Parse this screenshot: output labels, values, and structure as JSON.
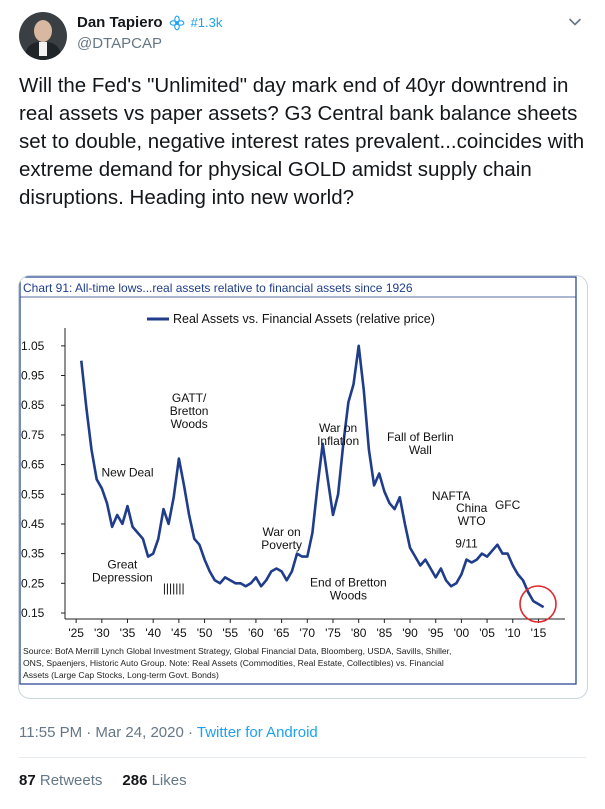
{
  "author": {
    "name": "Dan Tapiero",
    "handle": "@DTAPCAP",
    "hashtag": "#1.3k"
  },
  "tweet": {
    "text": "Will the Fed's \"Unlimited\" day mark end of 40yr downtrend in real assets vs paper assets? G3 Central bank balance sheets set to double, negative interest rates prevalent...coincides with extreme demand for physical GOLD amidst supply chain disruptions. Heading into new world?"
  },
  "chart_data": {
    "type": "line",
    "title": "Chart 91: All-time lows...real assets relative to financial assets since 1926",
    "legend": "Real Assets vs. Financial Assets (relative price)",
    "series": [
      {
        "name": "Real Assets vs. Financial Assets (relative price)",
        "x": [
          1926,
          1927,
          1928,
          1929,
          1930,
          1931,
          1932,
          1933,
          1934,
          1935,
          1936,
          1937,
          1938,
          1939,
          1940,
          1941,
          1942,
          1943,
          1944,
          1945,
          1946,
          1947,
          1948,
          1949,
          1950,
          1951,
          1952,
          1953,
          1954,
          1955,
          1956,
          1957,
          1958,
          1959,
          1960,
          1961,
          1962,
          1963,
          1964,
          1965,
          1966,
          1967,
          1968,
          1969,
          1970,
          1971,
          1972,
          1973,
          1974,
          1975,
          1976,
          1977,
          1978,
          1979,
          1980,
          1981,
          1982,
          1983,
          1984,
          1985,
          1986,
          1987,
          1988,
          1989,
          1990,
          1991,
          1992,
          1993,
          1994,
          1995,
          1996,
          1997,
          1998,
          1999,
          2000,
          2001,
          2002,
          2003,
          2004,
          2005,
          2006,
          2007,
          2008,
          2009,
          2010,
          2011,
          2012,
          2013,
          2014,
          2015,
          2016
        ],
        "values": [
          1.0,
          0.84,
          0.7,
          0.6,
          0.57,
          0.52,
          0.44,
          0.48,
          0.45,
          0.51,
          0.44,
          0.42,
          0.4,
          0.34,
          0.35,
          0.4,
          0.5,
          0.45,
          0.54,
          0.67,
          0.58,
          0.48,
          0.4,
          0.38,
          0.33,
          0.29,
          0.26,
          0.25,
          0.27,
          0.26,
          0.25,
          0.25,
          0.24,
          0.25,
          0.27,
          0.24,
          0.26,
          0.29,
          0.3,
          0.29,
          0.26,
          0.29,
          0.35,
          0.34,
          0.34,
          0.42,
          0.58,
          0.72,
          0.6,
          0.48,
          0.55,
          0.72,
          0.86,
          0.92,
          1.05,
          0.9,
          0.7,
          0.58,
          0.62,
          0.56,
          0.52,
          0.5,
          0.54,
          0.45,
          0.37,
          0.34,
          0.31,
          0.33,
          0.3,
          0.27,
          0.3,
          0.26,
          0.24,
          0.25,
          0.28,
          0.33,
          0.32,
          0.33,
          0.35,
          0.34,
          0.36,
          0.38,
          0.35,
          0.35,
          0.31,
          0.28,
          0.26,
          0.22,
          0.19,
          0.18,
          0.17
        ]
      }
    ],
    "yticks": [
      1.05,
      0.95,
      0.85,
      0.75,
      0.65,
      0.55,
      0.45,
      0.35,
      0.25,
      0.15
    ],
    "ytick_labels": [
      "1.05",
      "0.95",
      "0.85",
      "0.75",
      "0.65",
      "0.55",
      "0.45",
      "0.35",
      "0.25",
      "0.15"
    ],
    "xtick_labels": [
      "'25",
      "'30",
      "'35",
      "'40",
      "'45",
      "'50",
      "'55",
      "'60",
      "'65",
      "'70",
      "'75",
      "'80",
      "'85",
      "'90",
      "'95",
      "'00",
      "'05",
      "'10",
      "'15"
    ],
    "xtick_years": [
      1925,
      1930,
      1935,
      1940,
      1945,
      1950,
      1955,
      1960,
      1965,
      1970,
      1975,
      1980,
      1985,
      1990,
      1995,
      2000,
      2005,
      2010,
      2015
    ],
    "xlim": [
      1924,
      2019
    ],
    "ylim": [
      0.15,
      1.1
    ],
    "annotations": [
      {
        "lines": [
          "New Deal"
        ],
        "year": 1935,
        "value": 0.61
      },
      {
        "lines": [
          "Great",
          "Depression"
        ],
        "year": 1934,
        "value": 0.3
      },
      {
        "lines": [
          "GATT/",
          "Bretton",
          "Woods"
        ],
        "year": 1947,
        "value": 0.86
      },
      {
        "lines": [
          "War on",
          "Inflation"
        ],
        "year": 1976,
        "value": 0.76
      },
      {
        "lines": [
          "War on",
          "Poverty"
        ],
        "year": 1965,
        "value": 0.41
      },
      {
        "lines": [
          "End of Bretton",
          "Woods"
        ],
        "year": 1978,
        "value": 0.24
      },
      {
        "lines": [
          "Fall of Berlin",
          "Wall"
        ],
        "year": 1992,
        "value": 0.73
      },
      {
        "lines": [
          "NAFTA"
        ],
        "year": 1998,
        "value": 0.53
      },
      {
        "lines": [
          "China",
          "WTO"
        ],
        "year": 2002,
        "value": 0.49
      },
      {
        "lines": [
          "9/11"
        ],
        "year": 2001,
        "value": 0.37
      },
      {
        "lines": [
          "GFC"
        ],
        "year": 2009,
        "value": 0.5
      },
      {
        "lines": [
          "|||||||"
        ],
        "year": 1944,
        "value": 0.22
      }
    ],
    "source": "Source: BofA Merrill Lynch Global Investment Strategy, Global Financial Data, Bloomberg, USDA, Savills, Shiller, ONS, Spaenjers, Historic Auto Group. Note: Real Assets (Commodities, Real Estate, Collectibles) vs. Financial Assets (Large Cap Stocks, Long-term Govt. Bonds)",
    "source_lines": [
      "Source: BofA Merrill Lynch Global Investment Strategy, Global Financial Data, Bloomberg, USDA, Savills, Shiller,",
      "ONS, Spaenjers, Historic Auto Group. Note: Real Assets (Commodities, Real Estate, Collectibles) vs. Financial",
      "Assets (Large Cap Stocks, Long-term Govt. Bonds)"
    ]
  },
  "meta": {
    "time": "11:55 PM · Mar 24, 2020 · ",
    "source": "Twitter for Android"
  },
  "stats": {
    "retweets": "87",
    "retweets_label": "Retweets",
    "likes": "286",
    "likes_label": "Likes"
  },
  "colors": {
    "accent": "#1da1f2",
    "line": "#1f3d8a",
    "circle": "#e0282e"
  }
}
